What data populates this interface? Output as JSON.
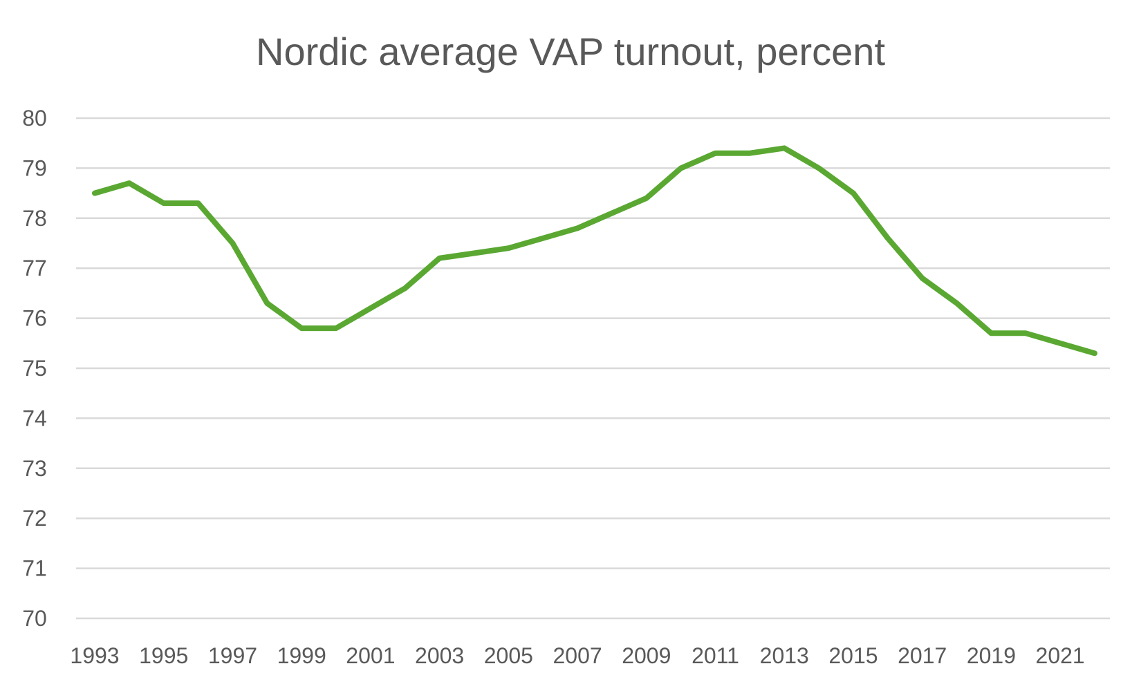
{
  "chart_data": {
    "type": "line",
    "title": "Nordic average VAP turnout, percent",
    "xlabel": "",
    "ylabel": "",
    "ylim": [
      70,
      80
    ],
    "yticks": [
      70,
      71,
      72,
      73,
      74,
      75,
      76,
      77,
      78,
      79,
      80
    ],
    "x": [
      1993,
      1994,
      1995,
      1996,
      1997,
      1998,
      1999,
      2000,
      2001,
      2002,
      2003,
      2004,
      2005,
      2006,
      2007,
      2008,
      2009,
      2010,
      2011,
      2012,
      2013,
      2014,
      2015,
      2016,
      2017,
      2018,
      2019,
      2020,
      2021,
      2022
    ],
    "xtick_labels": [
      "1993",
      "1995",
      "1997",
      "1999",
      "2001",
      "2003",
      "2005",
      "2007",
      "2009",
      "2011",
      "2013",
      "2015",
      "2017",
      "2019",
      "2021"
    ],
    "grid": true,
    "legend": "none",
    "series": [
      {
        "name": "Nordic average VAP turnout",
        "color": "#5aa832",
        "values": [
          78.5,
          78.7,
          78.3,
          78.3,
          77.5,
          76.3,
          75.8,
          75.8,
          76.2,
          76.6,
          77.2,
          77.3,
          77.4,
          77.6,
          77.8,
          78.1,
          78.4,
          79.0,
          79.3,
          79.3,
          79.4,
          79.0,
          78.5,
          77.6,
          76.8,
          76.3,
          75.7,
          75.7,
          75.5,
          75.3
        ]
      }
    ]
  }
}
